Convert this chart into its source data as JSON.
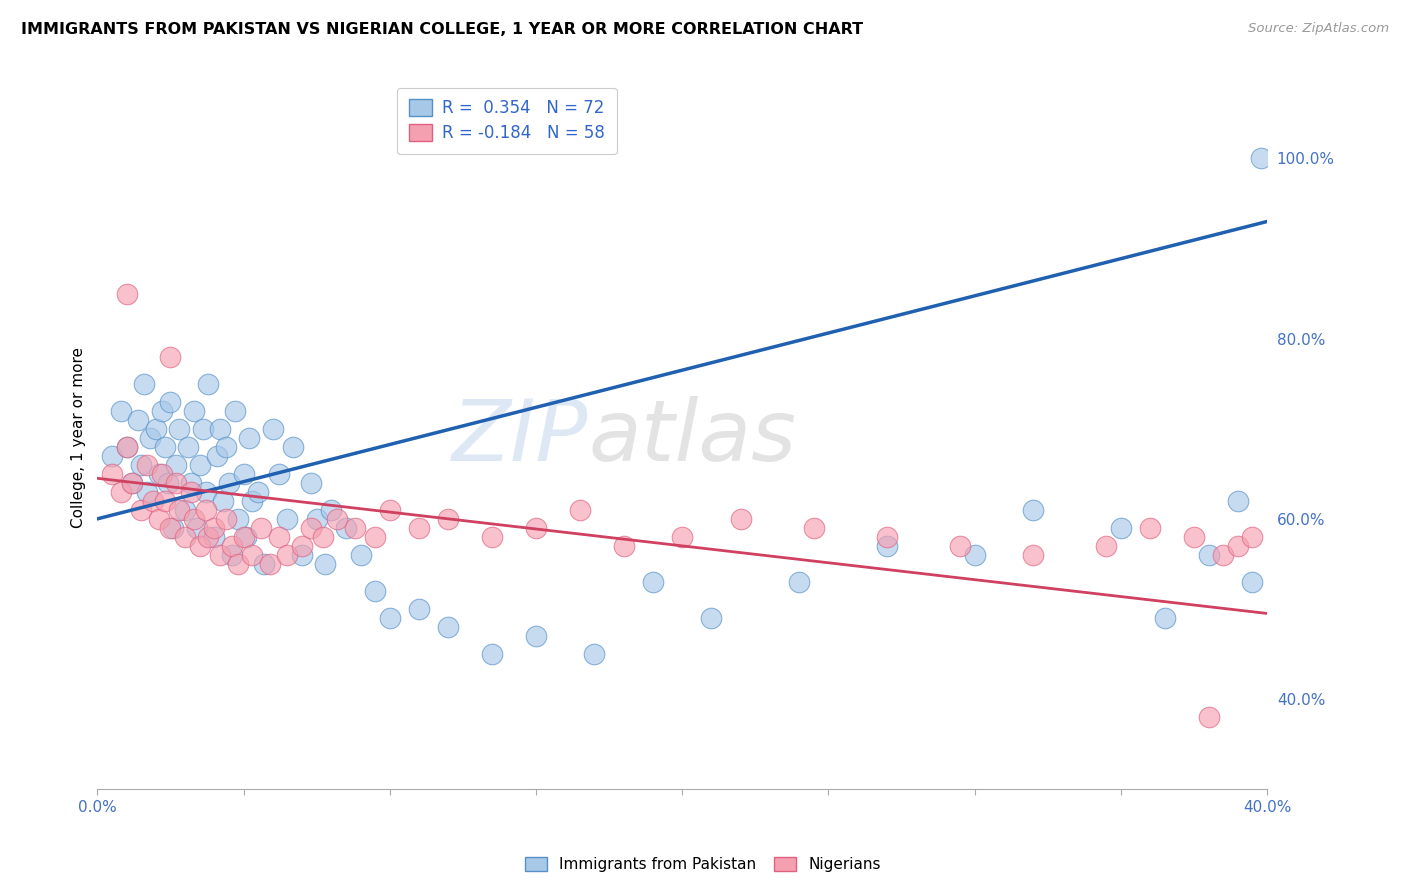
{
  "title": "IMMIGRANTS FROM PAKISTAN VS NIGERIAN COLLEGE, 1 YEAR OR MORE CORRELATION CHART",
  "source": "Source: ZipAtlas.com",
  "ylabel": "College, 1 year or more",
  "right_ytick_vals": [
    0.4,
    0.6,
    0.8,
    1.0
  ],
  "xlim": [
    0.0,
    0.4
  ],
  "ylim": [
    0.3,
    1.08
  ],
  "legend_label1": "Immigrants from Pakistan",
  "legend_label2": "Nigerians",
  "blue_color": "#a8c8e8",
  "pink_color": "#f5a0b0",
  "blue_edge_color": "#5590c8",
  "pink_edge_color": "#e06080",
  "blue_line_color": "#2060b0",
  "pink_line_color": "#d04060",
  "watermark_zip": "ZIP",
  "watermark_atlas": "atlas",
  "background_color": "#ffffff",
  "grid_color": "#cccccc",
  "blue_scatter_x": [
    0.005,
    0.008,
    0.01,
    0.012,
    0.014,
    0.015,
    0.016,
    0.017,
    0.018,
    0.02,
    0.021,
    0.022,
    0.023,
    0.024,
    0.025,
    0.026,
    0.027,
    0.028,
    0.03,
    0.031,
    0.032,
    0.033,
    0.034,
    0.035,
    0.036,
    0.037,
    0.038,
    0.04,
    0.041,
    0.042,
    0.043,
    0.044,
    0.045,
    0.046,
    0.047,
    0.048,
    0.05,
    0.051,
    0.052,
    0.053,
    0.055,
    0.057,
    0.06,
    0.062,
    0.065,
    0.067,
    0.07,
    0.073,
    0.075,
    0.078,
    0.08,
    0.085,
    0.09,
    0.095,
    0.1,
    0.11,
    0.12,
    0.135,
    0.15,
    0.17,
    0.19,
    0.21,
    0.24,
    0.27,
    0.3,
    0.32,
    0.35,
    0.365,
    0.38,
    0.39,
    0.395,
    0.398
  ],
  "blue_scatter_y": [
    0.67,
    0.72,
    0.68,
    0.64,
    0.71,
    0.66,
    0.75,
    0.63,
    0.69,
    0.7,
    0.65,
    0.72,
    0.68,
    0.64,
    0.73,
    0.59,
    0.66,
    0.7,
    0.61,
    0.68,
    0.64,
    0.72,
    0.59,
    0.66,
    0.7,
    0.63,
    0.75,
    0.58,
    0.67,
    0.7,
    0.62,
    0.68,
    0.64,
    0.56,
    0.72,
    0.6,
    0.65,
    0.58,
    0.69,
    0.62,
    0.63,
    0.55,
    0.7,
    0.65,
    0.6,
    0.68,
    0.56,
    0.64,
    0.6,
    0.55,
    0.61,
    0.59,
    0.56,
    0.52,
    0.49,
    0.5,
    0.48,
    0.45,
    0.47,
    0.45,
    0.53,
    0.49,
    0.53,
    0.57,
    0.56,
    0.61,
    0.59,
    0.49,
    0.56,
    0.62,
    0.53,
    1.0
  ],
  "pink_scatter_x": [
    0.005,
    0.008,
    0.01,
    0.012,
    0.015,
    0.017,
    0.019,
    0.021,
    0.022,
    0.023,
    0.025,
    0.027,
    0.028,
    0.03,
    0.032,
    0.033,
    0.035,
    0.037,
    0.038,
    0.04,
    0.042,
    0.044,
    0.046,
    0.048,
    0.05,
    0.053,
    0.056,
    0.059,
    0.062,
    0.065,
    0.07,
    0.073,
    0.077,
    0.082,
    0.088,
    0.095,
    0.1,
    0.11,
    0.12,
    0.135,
    0.15,
    0.165,
    0.18,
    0.2,
    0.22,
    0.245,
    0.27,
    0.295,
    0.32,
    0.345,
    0.36,
    0.375,
    0.385,
    0.39,
    0.395,
    0.01,
    0.025,
    0.38
  ],
  "pink_scatter_y": [
    0.65,
    0.63,
    0.68,
    0.64,
    0.61,
    0.66,
    0.62,
    0.6,
    0.65,
    0.62,
    0.59,
    0.64,
    0.61,
    0.58,
    0.63,
    0.6,
    0.57,
    0.61,
    0.58,
    0.59,
    0.56,
    0.6,
    0.57,
    0.55,
    0.58,
    0.56,
    0.59,
    0.55,
    0.58,
    0.56,
    0.57,
    0.59,
    0.58,
    0.6,
    0.59,
    0.58,
    0.61,
    0.59,
    0.6,
    0.58,
    0.59,
    0.61,
    0.57,
    0.58,
    0.6,
    0.59,
    0.58,
    0.57,
    0.56,
    0.57,
    0.59,
    0.58,
    0.56,
    0.57,
    0.58,
    0.85,
    0.78,
    0.38
  ],
  "blue_line_x": [
    0.0,
    0.4
  ],
  "blue_line_y": [
    0.6,
    0.93
  ],
  "pink_line_x": [
    0.0,
    0.4
  ],
  "pink_line_y": [
    0.645,
    0.495
  ]
}
